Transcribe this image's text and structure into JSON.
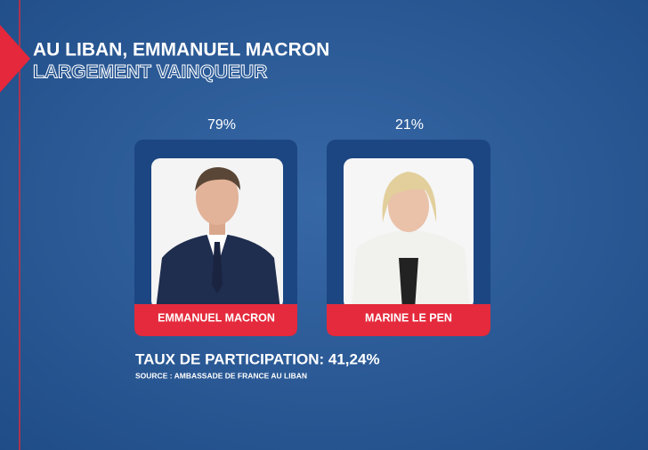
{
  "header": {
    "title": "AU LIBAN, EMMANUEL MACRON",
    "subtitle": "LARGEMENT VAINQUEUR"
  },
  "candidates": [
    {
      "share": "79%",
      "name": "EMMANUEL MACRON"
    },
    {
      "share": "21%",
      "name": "MARINE LE PEN"
    }
  ],
  "participation": "TAUX DE PARTICIPATION: 41,24%",
  "source": "SOURCE : AMBASSADE DE FRANCE AU LIBAN"
}
